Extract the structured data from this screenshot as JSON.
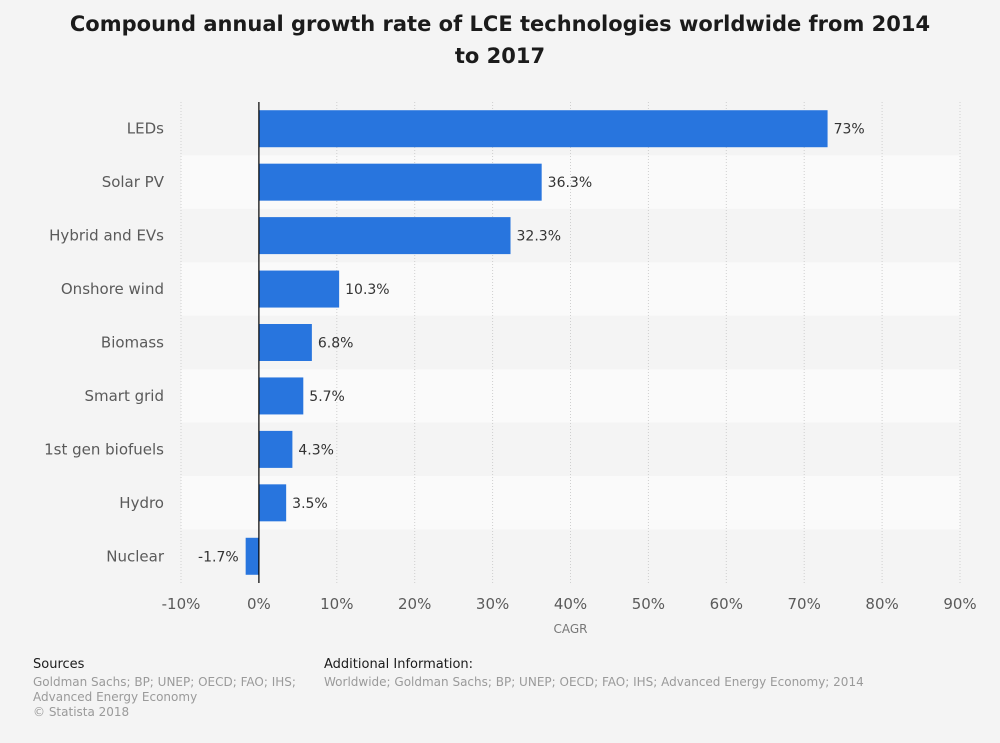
{
  "chart_data": {
    "type": "bar",
    "orientation": "horizontal",
    "title": "Compound annual growth rate of LCE technologies worldwide from 2014 to 2017",
    "categories": [
      "LEDs",
      "Solar PV",
      "Hybrid and EVs",
      "Onshore wind",
      "Biomass",
      "Smart grid",
      "1st gen biofuels",
      "Hydro",
      "Nuclear"
    ],
    "values": [
      73,
      36.3,
      32.3,
      10.3,
      6.8,
      5.7,
      4.3,
      3.5,
      -1.7
    ],
    "value_labels": [
      "73%",
      "36.3%",
      "32.3%",
      "10.3%",
      "6.8%",
      "5.7%",
      "4.3%",
      "3.5%",
      "-1.7%"
    ],
    "xlabel": "CAGR",
    "ylabel": "",
    "xlim": [
      -10,
      90
    ],
    "xticks": [
      -10,
      0,
      10,
      20,
      30,
      40,
      50,
      60,
      70,
      80,
      90
    ],
    "xtick_labels": [
      "-10%",
      "0%",
      "10%",
      "20%",
      "30%",
      "40%",
      "50%",
      "60%",
      "70%",
      "80%",
      "90%"
    ],
    "grid": true,
    "bar_color": "#2875de"
  },
  "footer": {
    "sources_heading": "Sources",
    "sources_lines": [
      "Goldman Sachs; BP; UNEP; OECD; FAO; IHS;",
      "Advanced Energy Economy",
      "© Statista 2018"
    ],
    "additional_heading": "Additional Information:",
    "additional_text": "Worldwide; Goldman Sachs; BP; UNEP; OECD; FAO; IHS; Advanced Energy Economy; 2014"
  }
}
